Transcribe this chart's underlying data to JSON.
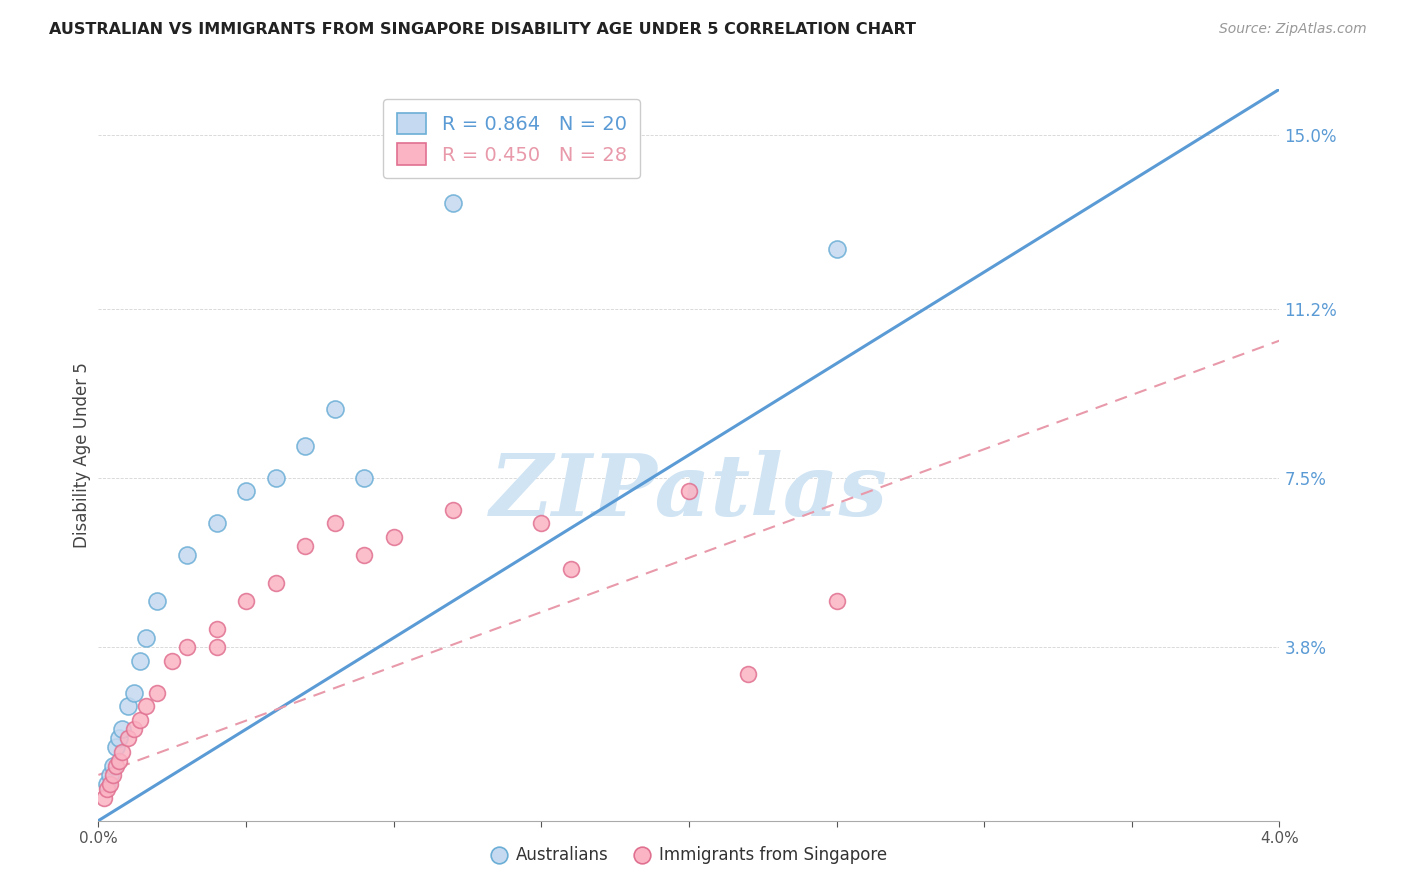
{
  "title": "AUSTRALIAN VS IMMIGRANTS FROM SINGAPORE DISABILITY AGE UNDER 5 CORRELATION CHART",
  "source": "Source: ZipAtlas.com",
  "ylabel": "Disability Age Under 5",
  "ytick_labels": [
    "15.0%",
    "11.2%",
    "7.5%",
    "3.8%"
  ],
  "ytick_values": [
    0.15,
    0.112,
    0.075,
    0.038
  ],
  "r_australian": 0.864,
  "n_australian": 20,
  "r_singapore": 0.45,
  "n_singapore": 28,
  "color_australian_fill": "#c5d9f0",
  "color_australian_edge": "#6baed6",
  "color_singapore_fill": "#fbb4c4",
  "color_singapore_edge": "#e07090",
  "color_line_australian": "#5b9bd5",
  "color_line_singapore": "#e899aa",
  "watermark_color": "#d0e4f4",
  "aus_x": [
    0.0003,
    0.0004,
    0.0005,
    0.0006,
    0.0007,
    0.0008,
    0.001,
    0.0012,
    0.0014,
    0.0016,
    0.002,
    0.003,
    0.004,
    0.005,
    0.006,
    0.007,
    0.008,
    0.009,
    0.012,
    0.025
  ],
  "aus_y": [
    0.008,
    0.01,
    0.012,
    0.016,
    0.018,
    0.02,
    0.025,
    0.028,
    0.035,
    0.04,
    0.048,
    0.058,
    0.065,
    0.072,
    0.075,
    0.082,
    0.09,
    0.075,
    0.135,
    0.125
  ],
  "sin_x": [
    0.0002,
    0.0003,
    0.0004,
    0.0005,
    0.0006,
    0.0007,
    0.0008,
    0.001,
    0.0012,
    0.0014,
    0.0016,
    0.002,
    0.0025,
    0.003,
    0.004,
    0.004,
    0.005,
    0.006,
    0.007,
    0.008,
    0.009,
    0.01,
    0.012,
    0.015,
    0.016,
    0.02,
    0.022,
    0.025
  ],
  "sin_y": [
    0.005,
    0.007,
    0.008,
    0.01,
    0.012,
    0.013,
    0.015,
    0.018,
    0.02,
    0.022,
    0.025,
    0.028,
    0.035,
    0.038,
    0.038,
    0.042,
    0.048,
    0.052,
    0.06,
    0.065,
    0.058,
    0.062,
    0.068,
    0.065,
    0.055,
    0.072,
    0.032,
    0.048
  ],
  "xmin": 0.0,
  "xmax": 0.04,
  "ymin": 0.0,
  "ymax": 0.16,
  "line_aus_x0": 0.0,
  "line_aus_y0": 0.0,
  "line_aus_x1": 0.04,
  "line_aus_y1": 0.16,
  "line_sin_x0": 0.0,
  "line_sin_y0": 0.01,
  "line_sin_x1": 0.04,
  "line_sin_y1": 0.105
}
